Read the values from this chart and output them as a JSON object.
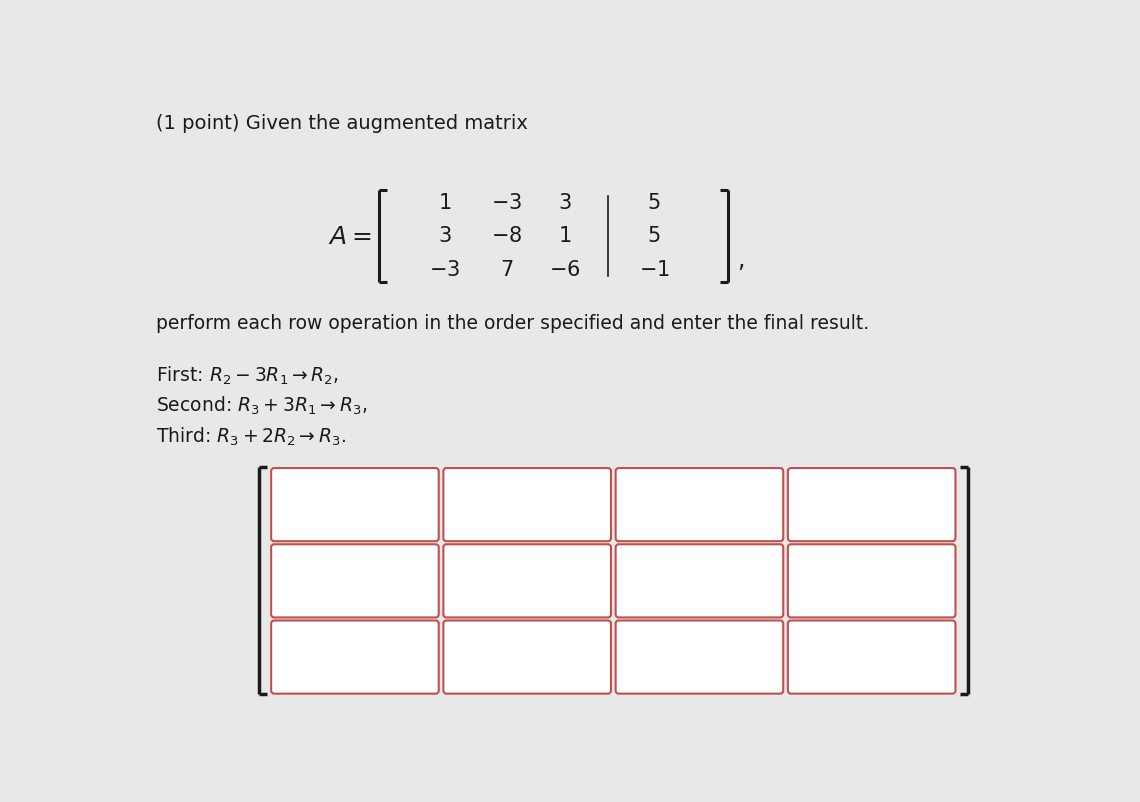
{
  "background_color": "#e8e8e8",
  "title_text": "(1 point) Given the augmented matrix",
  "matrix_rows": [
    [
      "1",
      "-3",
      "3",
      "5"
    ],
    [
      "3",
      "-8",
      "1",
      "5"
    ],
    [
      "-3",
      "7",
      "-6",
      "-1"
    ]
  ],
  "body_text": "perform each row operation in the order specified and enter the final result.",
  "operations": [
    "First: $R_2 - 3R_1 \\rightarrow R_2$,",
    "Second: $R_3 + 3R_1 \\rightarrow R_3$,",
    "Third: $R_3 + 2R_2 \\rightarrow R_3$."
  ],
  "grid_rows": 3,
  "grid_cols": 4,
  "box_fill": "#ffffff",
  "box_edge_color": "#c0504d",
  "box_glow_color": "#e8b0b0",
  "text_color": "#1a1a1a",
  "bracket_color": "#1a1a1a",
  "font_size_title": 14,
  "font_size_body": 13.5,
  "font_size_matrix": 15,
  "font_size_ops": 13.5
}
